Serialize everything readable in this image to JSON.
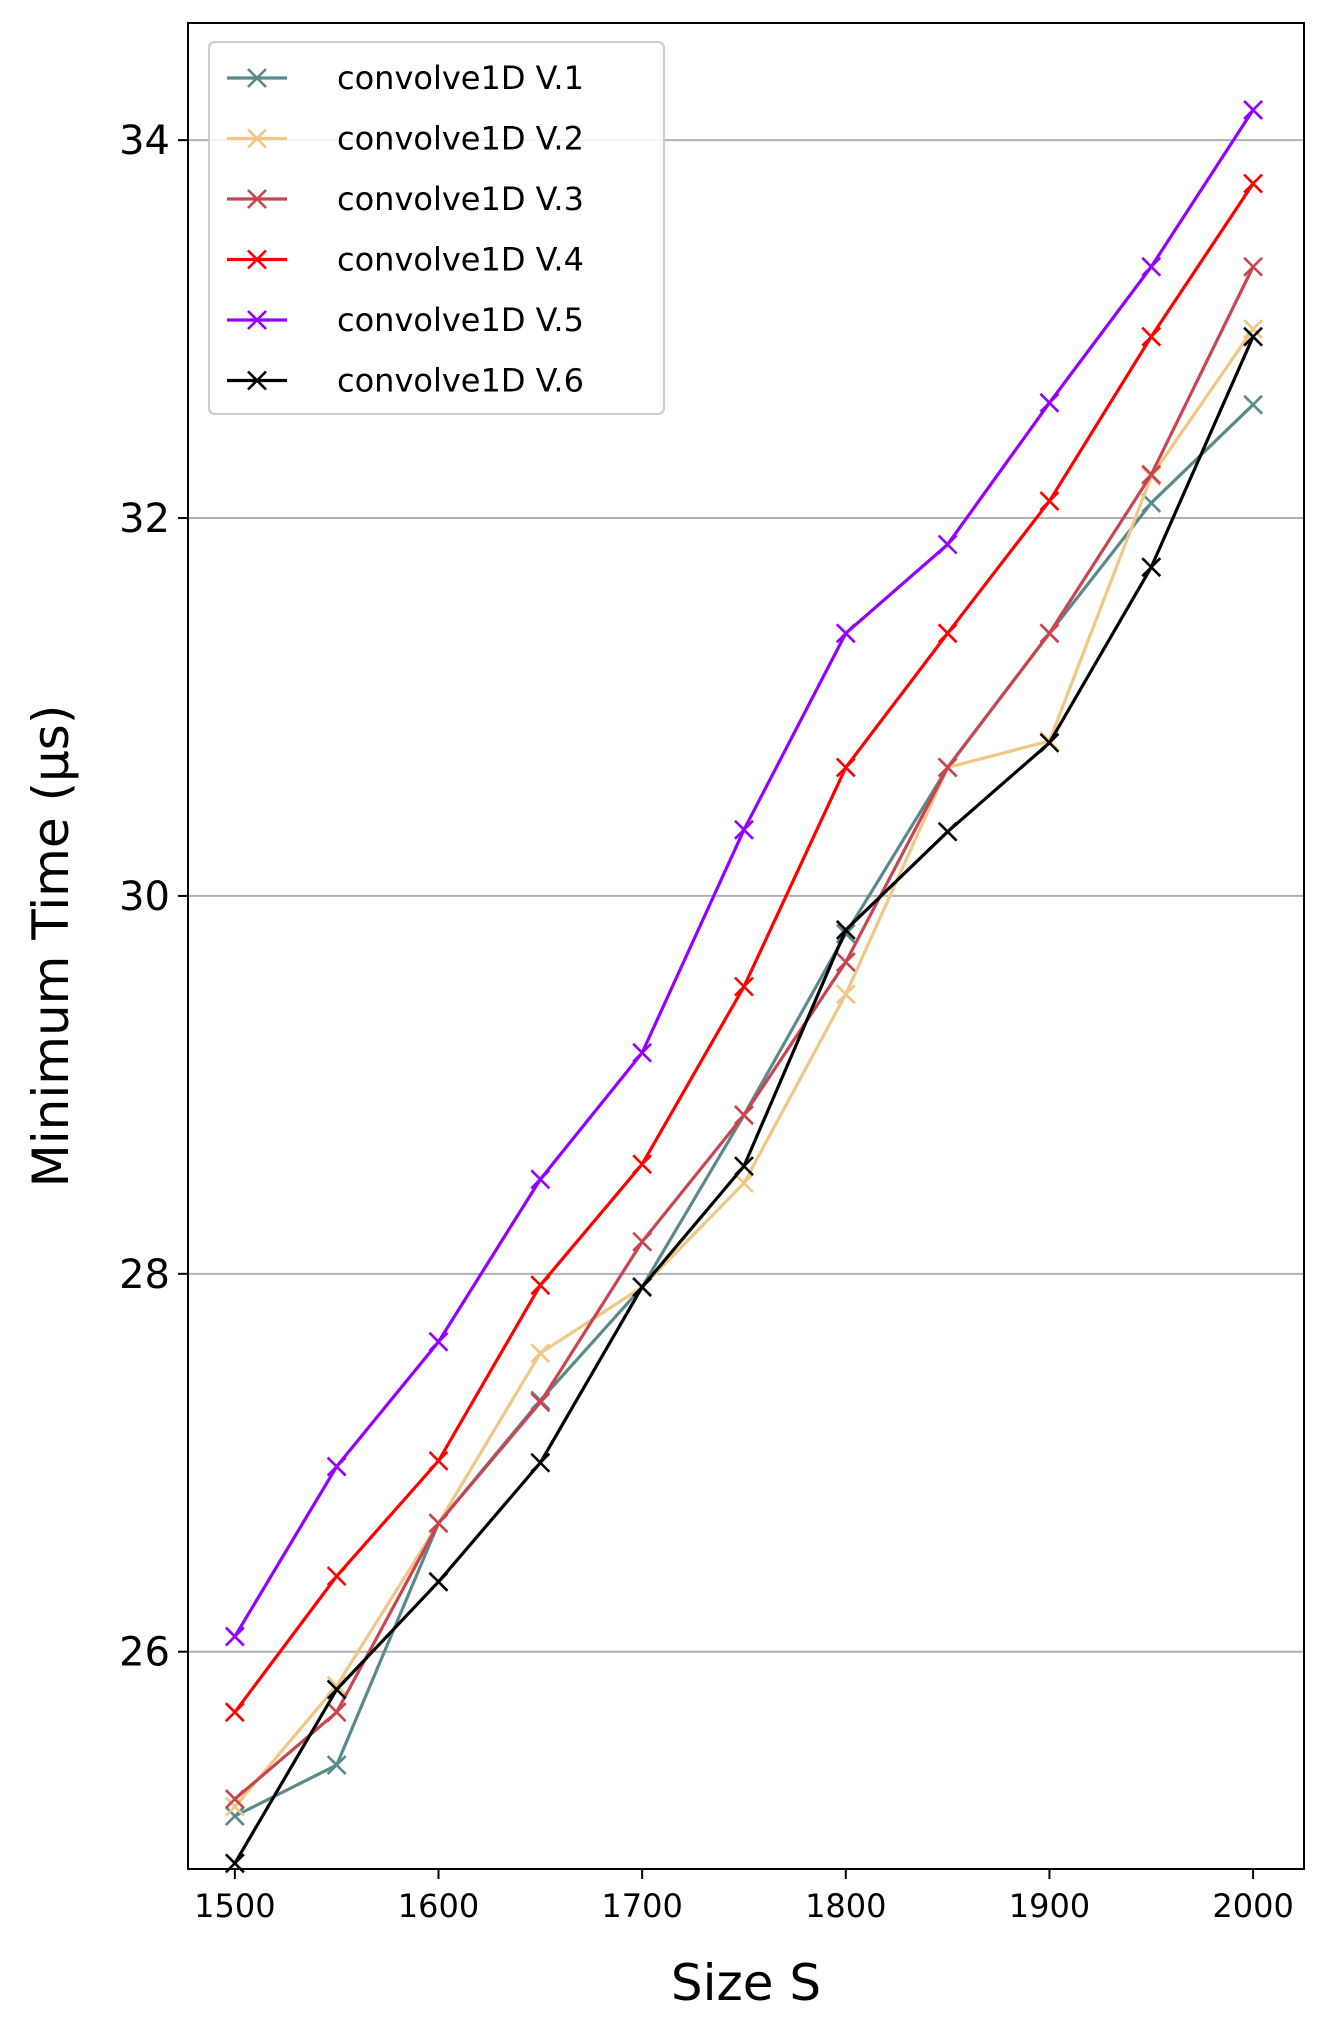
{
  "chart_data": {
    "type": "line",
    "xlabel": "Size S",
    "ylabel": "Minimum Time (μs)",
    "x": [
      1500,
      1550,
      1600,
      1650,
      1700,
      1750,
      1800,
      1850,
      1900,
      1950,
      2000
    ],
    "xticks": [
      1500,
      1600,
      1700,
      1800,
      1900,
      2000
    ],
    "xtick_labels": [
      "1500",
      "1600",
      "1700",
      "1800",
      "1900",
      "2000"
    ],
    "xlim": [
      1477,
      2025
    ],
    "yticks": [
      26,
      28,
      30,
      32,
      34
    ],
    "ytick_labels": [
      "26",
      "28",
      "30",
      "32",
      "34"
    ],
    "ylim": [
      24.85,
      34.62
    ],
    "grid": "y-major",
    "legend_position": "upper-left",
    "marker": "x",
    "series": [
      {
        "name": "convolve1D V.1",
        "color": "#5b8a8e",
        "values": [
          25.13,
          25.4,
          26.68,
          27.33,
          27.93,
          28.84,
          29.8,
          30.68,
          31.39,
          32.08,
          32.6
        ]
      },
      {
        "name": "convolve1D V.2",
        "color": "#f0c784",
        "values": [
          25.18,
          25.82,
          26.68,
          27.58,
          27.93,
          28.48,
          29.48,
          30.68,
          30.82,
          32.22,
          33.0
        ]
      },
      {
        "name": "convolve1D V.3",
        "color": "#c9454f",
        "values": [
          25.22,
          25.68,
          26.68,
          27.32,
          28.17,
          28.84,
          29.65,
          30.68,
          31.39,
          32.23,
          33.33
        ]
      },
      {
        "name": "convolve1D V.4",
        "color": "#ff0000",
        "values": [
          25.68,
          26.4,
          27.01,
          27.94,
          28.58,
          29.52,
          30.68,
          31.39,
          32.09,
          32.96,
          33.77
        ]
      },
      {
        "name": "convolve1D V.5",
        "color": "#9400ff",
        "values": [
          26.08,
          26.98,
          27.64,
          28.5,
          29.17,
          30.35,
          31.39,
          31.86,
          32.61,
          33.33,
          34.16
        ]
      },
      {
        "name": "convolve1D V.6",
        "color": "#000000",
        "values": [
          24.88,
          25.8,
          26.37,
          27.0,
          27.93,
          28.57,
          29.82,
          30.34,
          30.81,
          31.74,
          32.96
        ]
      }
    ]
  }
}
